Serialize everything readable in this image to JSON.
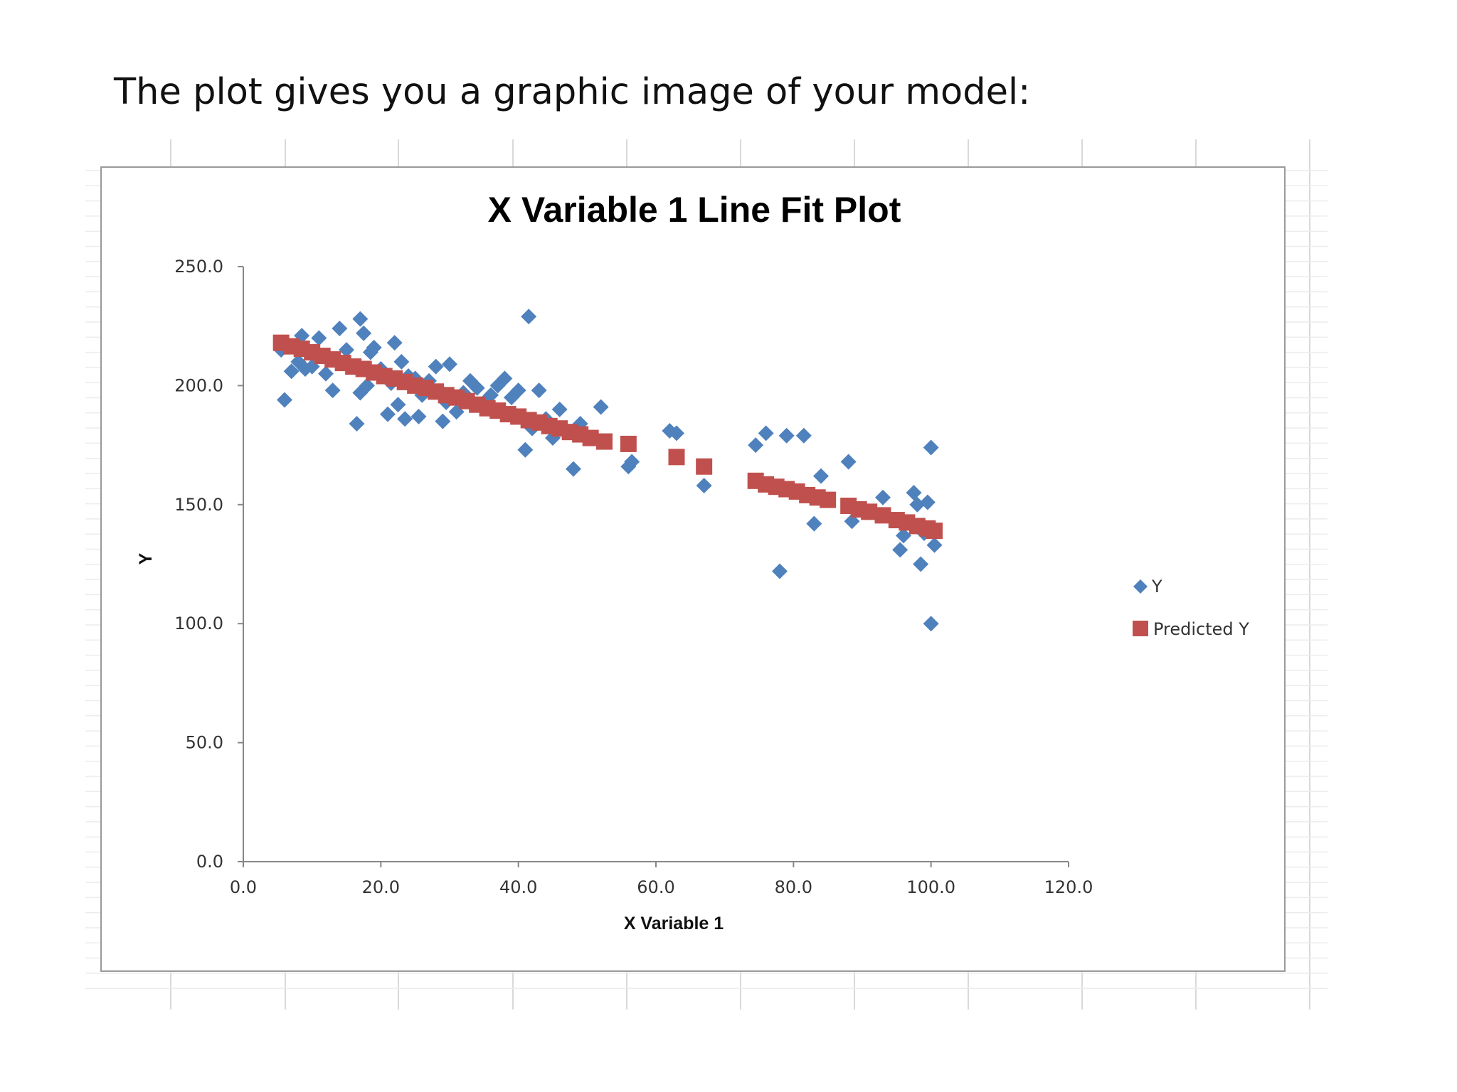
{
  "heading": "The plot gives you a graphic image of your model:",
  "colors": {
    "y_series": "#4f81bd",
    "predicted_series": "#c0504d",
    "axis": "#878787",
    "grid": "#d9d9d9"
  },
  "chart_data": {
    "type": "scatter",
    "title": "X Variable 1 Line Fit  Plot",
    "xlabel": "X Variable  1",
    "ylabel": "Y",
    "xlim": [
      0,
      120
    ],
    "ylim": [
      0,
      250
    ],
    "x_ticks": [
      "0.0",
      "20.0",
      "40.0",
      "60.0",
      "80.0",
      "100.0",
      "120.0"
    ],
    "y_ticks": [
      "0.0",
      "50.0",
      "100.0",
      "150.0",
      "200.0",
      "250.0"
    ],
    "grid": false,
    "legend_position": "right",
    "series": [
      {
        "name": "Y",
        "marker": "diamond",
        "points": [
          [
            5.5,
            215
          ],
          [
            6,
            194
          ],
          [
            7,
            206
          ],
          [
            8,
            210
          ],
          [
            8.5,
            221
          ],
          [
            9,
            207
          ],
          [
            10,
            208
          ],
          [
            11,
            220
          ],
          [
            12,
            205
          ],
          [
            13,
            198
          ],
          [
            14,
            224
          ],
          [
            15,
            215
          ],
          [
            16,
            208
          ],
          [
            16.5,
            184
          ],
          [
            17,
            197
          ],
          [
            17,
            228
          ],
          [
            17.5,
            222
          ],
          [
            18,
            200
          ],
          [
            18.5,
            214
          ],
          [
            19,
            216
          ],
          [
            20,
            207
          ],
          [
            21,
            188
          ],
          [
            21.5,
            201
          ],
          [
            22,
            218
          ],
          [
            22.5,
            192
          ],
          [
            23,
            210
          ],
          [
            23.5,
            186
          ],
          [
            24,
            204
          ],
          [
            25,
            203
          ],
          [
            25.5,
            187
          ],
          [
            26,
            196
          ],
          [
            27,
            202
          ],
          [
            28,
            208
          ],
          [
            29,
            185
          ],
          [
            29.5,
            193
          ],
          [
            30,
            209
          ],
          [
            31,
            189
          ],
          [
            32,
            197
          ],
          [
            33,
            202
          ],
          [
            34,
            199
          ],
          [
            35,
            193
          ],
          [
            36,
            196
          ],
          [
            37,
            200
          ],
          [
            37.5,
            189
          ],
          [
            38,
            203
          ],
          [
            39,
            195
          ],
          [
            40,
            198
          ],
          [
            41,
            173
          ],
          [
            41.5,
            229
          ],
          [
            42,
            182
          ],
          [
            43,
            198
          ],
          [
            44,
            186
          ],
          [
            45,
            178
          ],
          [
            46,
            190
          ],
          [
            48,
            165
          ],
          [
            49,
            184
          ],
          [
            52,
            191
          ],
          [
            56,
            166
          ],
          [
            56.5,
            168
          ],
          [
            62,
            181
          ],
          [
            63,
            180
          ],
          [
            67,
            158
          ],
          [
            74.5,
            175
          ],
          [
            76,
            180
          ],
          [
            78,
            122
          ],
          [
            79,
            179
          ],
          [
            81.5,
            179
          ],
          [
            83,
            142
          ],
          [
            84,
            162
          ],
          [
            88,
            168
          ],
          [
            88.5,
            143
          ],
          [
            93,
            153
          ],
          [
            95.5,
            131
          ],
          [
            96,
            137
          ],
          [
            97.5,
            155
          ],
          [
            98,
            150
          ],
          [
            98.5,
            125
          ],
          [
            99,
            138
          ],
          [
            99.5,
            151
          ],
          [
            100,
            100
          ],
          [
            100,
            174
          ],
          [
            100.5,
            133
          ]
        ]
      },
      {
        "name": "Predicted Y",
        "marker": "square",
        "points": [
          [
            5.5,
            218
          ],
          [
            7,
            216.5
          ],
          [
            8.5,
            215.5
          ],
          [
            10,
            214
          ],
          [
            11.5,
            212.5
          ],
          [
            13,
            211
          ],
          [
            14.5,
            209.5
          ],
          [
            16,
            208
          ],
          [
            17.5,
            207
          ],
          [
            19,
            205.5
          ],
          [
            20.5,
            204
          ],
          [
            22,
            203
          ],
          [
            23.5,
            201.5
          ],
          [
            25,
            200
          ],
          [
            26.5,
            199
          ],
          [
            28,
            197.5
          ],
          [
            29.5,
            196
          ],
          [
            31,
            195
          ],
          [
            32.5,
            193.5
          ],
          [
            34,
            192
          ],
          [
            35.5,
            190.5
          ],
          [
            37,
            189.5
          ],
          [
            38.5,
            188
          ],
          [
            40,
            187
          ],
          [
            41.5,
            185.5
          ],
          [
            43,
            184.5
          ],
          [
            44.5,
            183
          ],
          [
            46,
            182
          ],
          [
            47.5,
            180.5
          ],
          [
            49,
            179.5
          ],
          [
            50.5,
            178
          ],
          [
            52.5,
            176.5
          ],
          [
            56,
            175.5
          ],
          [
            63,
            170
          ],
          [
            67,
            166
          ],
          [
            74.5,
            160
          ],
          [
            76,
            158.5
          ],
          [
            77.5,
            157.5
          ],
          [
            79,
            156.5
          ],
          [
            80.5,
            155.5
          ],
          [
            82,
            154
          ],
          [
            83.5,
            153
          ],
          [
            85,
            152
          ],
          [
            88,
            149.5
          ],
          [
            89.5,
            148
          ],
          [
            91,
            147
          ],
          [
            93,
            145.5
          ],
          [
            95,
            143.5
          ],
          [
            96.5,
            142.5
          ],
          [
            98,
            141
          ],
          [
            99.5,
            140
          ],
          [
            100.5,
            139
          ]
        ]
      }
    ]
  }
}
